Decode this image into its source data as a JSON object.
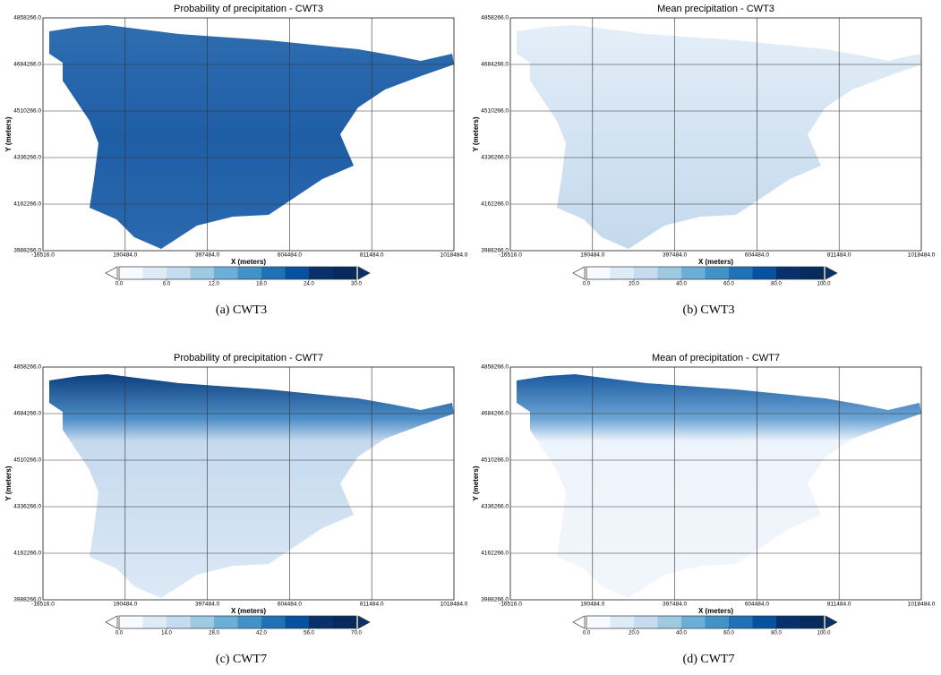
{
  "panels": [
    {
      "title": "Probability of precipitation - CWT3",
      "xlabel": "X (meters)",
      "ylabel": "Y (meters)",
      "xlim": [
        -16516,
        1018484
      ],
      "ylim": [
        3988266,
        4858266
      ],
      "xticks": [
        {
          "value": -16516,
          "label": "-16516.0"
        },
        {
          "value": 190484,
          "label": "190484.0"
        },
        {
          "value": 397484,
          "label": "397484.0"
        },
        {
          "value": 604484,
          "label": "604484.0"
        },
        {
          "value": 811484,
          "label": "811484.0"
        },
        {
          "value": 1018484,
          "label": "1018484.0"
        }
      ],
      "yticks": [
        {
          "value": 3988266,
          "label": "3988266.0"
        },
        {
          "value": 4162266,
          "label": "4162266.0"
        },
        {
          "value": 4336266,
          "label": "4336266.0"
        },
        {
          "value": 4510266,
          "label": "4510266.0"
        },
        {
          "value": 4684266,
          "label": "4684266.0"
        },
        {
          "value": 4858266,
          "label": "4858266.0"
        }
      ],
      "colorbar": {
        "lim": [
          0,
          30
        ],
        "ticks": [
          {
            "value": 0,
            "label": "0.0"
          },
          {
            "value": 6,
            "label": "6.0"
          },
          {
            "value": 12,
            "label": "12.0"
          },
          {
            "value": 18,
            "label": "18.0"
          },
          {
            "value": 24,
            "label": "24.0"
          },
          {
            "value": 30,
            "label": "30.0"
          }
        ]
      },
      "caption": "(a) CWT3"
    },
    {
      "title": "Mean precipitation - CWT3",
      "xlabel": "X (meters)",
      "ylabel": "Y (meters)",
      "xlim": [
        -16516,
        1018484
      ],
      "ylim": [
        3988266,
        4858266
      ],
      "xticks": [
        {
          "value": -16516,
          "label": "-16516.0"
        },
        {
          "value": 190484,
          "label": "190484.0"
        },
        {
          "value": 397484,
          "label": "397484.0"
        },
        {
          "value": 604484,
          "label": "604484.0"
        },
        {
          "value": 811484,
          "label": "811484.0"
        },
        {
          "value": 1018484,
          "label": "1018484.0"
        }
      ],
      "yticks": [
        {
          "value": 3988266,
          "label": "3988266.0"
        },
        {
          "value": 4162266,
          "label": "4162266.0"
        },
        {
          "value": 4336266,
          "label": "4336266.0"
        },
        {
          "value": 4510266,
          "label": "4510266.0"
        },
        {
          "value": 4684266,
          "label": "4684266.0"
        },
        {
          "value": 4858266,
          "label": "4858266.0"
        }
      ],
      "colorbar": {
        "lim": [
          0,
          100
        ],
        "ticks": [
          {
            "value": 0,
            "label": "0.0"
          },
          {
            "value": 20,
            "label": "20.0"
          },
          {
            "value": 40,
            "label": "40.0"
          },
          {
            "value": 60,
            "label": "60.0"
          },
          {
            "value": 80,
            "label": "80.0"
          },
          {
            "value": 100,
            "label": "100.0"
          }
        ]
      },
      "caption": "(b) CWT3"
    },
    {
      "title": "Probability of precipitation - CWT7",
      "xlabel": "X (meters)",
      "ylabel": "Y (meters)",
      "xlim": [
        -16516,
        1018484
      ],
      "ylim": [
        3988266,
        4858266
      ],
      "xticks": [
        {
          "value": -16516,
          "label": "-16516.0"
        },
        {
          "value": 190484,
          "label": "190484.0"
        },
        {
          "value": 397484,
          "label": "397484.0"
        },
        {
          "value": 604484,
          "label": "604484.0"
        },
        {
          "value": 811484,
          "label": "811484.0"
        },
        {
          "value": 1018484,
          "label": "1018484.0"
        }
      ],
      "yticks": [
        {
          "value": 3988266,
          "label": "3988266.0"
        },
        {
          "value": 4162266,
          "label": "4162266.0"
        },
        {
          "value": 4336266,
          "label": "4336266.0"
        },
        {
          "value": 4510266,
          "label": "4510266.0"
        },
        {
          "value": 4684266,
          "label": "4684266.0"
        },
        {
          "value": 4858266,
          "label": "4858266.0"
        }
      ],
      "colorbar": {
        "lim": [
          0,
          70
        ],
        "ticks": [
          {
            "value": 0,
            "label": "0.0"
          },
          {
            "value": 14,
            "label": "14.0"
          },
          {
            "value": 28,
            "label": "28.0"
          },
          {
            "value": 42,
            "label": "42.0"
          },
          {
            "value": 56,
            "label": "56.0"
          },
          {
            "value": 70,
            "label": "70.0"
          }
        ]
      },
      "caption": "(c) CWT7"
    },
    {
      "title": "Mean of precipitation - CWT7",
      "xlabel": "X (meters)",
      "ylabel": "Y (meters)",
      "xlim": [
        -16516,
        1018484
      ],
      "ylim": [
        3988266,
        4858266
      ],
      "xticks": [
        {
          "value": -16516,
          "label": "-16516.0"
        },
        {
          "value": 190484,
          "label": "190484.0"
        },
        {
          "value": 397484,
          "label": "397484.0"
        },
        {
          "value": 604484,
          "label": "604484.0"
        },
        {
          "value": 811484,
          "label": "811484.0"
        },
        {
          "value": 1018484,
          "label": "1018484.0"
        }
      ],
      "yticks": [
        {
          "value": 3988266,
          "label": "3988266.0"
        },
        {
          "value": 4162266,
          "label": "4162266.0"
        },
        {
          "value": 4336266,
          "label": "4336266.0"
        },
        {
          "value": 4510266,
          "label": "4510266.0"
        },
        {
          "value": 4684266,
          "label": "4684266.0"
        },
        {
          "value": 4858266,
          "label": "4858266.0"
        }
      ],
      "colorbar": {
        "lim": [
          0,
          100
        ],
        "ticks": [
          {
            "value": 0,
            "label": "0.0"
          },
          {
            "value": 20,
            "label": "20.0"
          },
          {
            "value": 40,
            "label": "40.0"
          },
          {
            "value": 60,
            "label": "60.0"
          },
          {
            "value": 80,
            "label": "80.0"
          },
          {
            "value": 100,
            "label": "100.0"
          }
        ]
      },
      "caption": "(d) CWT7"
    }
  ]
}
